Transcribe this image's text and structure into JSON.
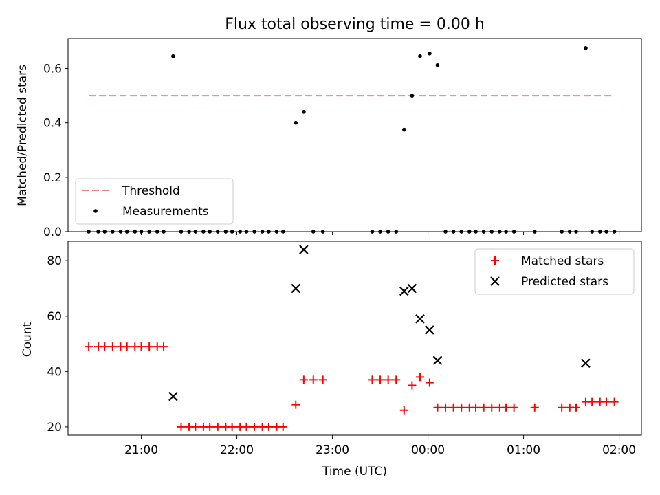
{
  "chart_data": [
    {
      "type": "scatter",
      "title": "Flux total observing time = 0.00 h",
      "ylabel": "Matched/Predicted stars",
      "xlabel": "",
      "xlim": [
        "20:14",
        "02:14"
      ],
      "ylim": [
        0,
        0.71
      ],
      "yticks": [
        "0.0",
        "0.2",
        "0.4",
        "0.6"
      ],
      "legend": {
        "placement": "lower-left",
        "entries": [
          "Threshold",
          "Measurements"
        ]
      },
      "threshold": {
        "name": "Threshold",
        "value": 0.5,
        "x_start": "20:27",
        "x_end": "01:57",
        "color": "#f08080",
        "style": "dashed"
      },
      "series": [
        {
          "name": "Measurements",
          "marker": "dot",
          "color": "#000000",
          "points": [
            [
              "20:27",
              0
            ],
            [
              "20:33",
              0
            ],
            [
              "20:37",
              0
            ],
            [
              "20:42",
              0
            ],
            [
              "20:47",
              0
            ],
            [
              "20:51",
              0
            ],
            [
              "20:56",
              0
            ],
            [
              "21:00",
              0
            ],
            [
              "21:05",
              0
            ],
            [
              "21:10",
              0
            ],
            [
              "21:14",
              0
            ],
            [
              "21:20",
              0.645
            ],
            [
              "21:25",
              0
            ],
            [
              "21:30",
              0
            ],
            [
              "21:34",
              0
            ],
            [
              "21:39",
              0
            ],
            [
              "21:43",
              0
            ],
            [
              "21:48",
              0
            ],
            [
              "21:53",
              0
            ],
            [
              "21:57",
              0
            ],
            [
              "22:02",
              0
            ],
            [
              "22:06",
              0
            ],
            [
              "22:11",
              0
            ],
            [
              "22:16",
              0
            ],
            [
              "22:20",
              0
            ],
            [
              "22:25",
              0
            ],
            [
              "22:29",
              0
            ],
            [
              "22:37",
              0.4
            ],
            [
              "22:42",
              0.44
            ],
            [
              "22:48",
              0
            ],
            [
              "22:54",
              0
            ],
            [
              "23:25",
              0
            ],
            [
              "23:30",
              0
            ],
            [
              "23:35",
              0
            ],
            [
              "23:40",
              0
            ],
            [
              "23:45",
              0.375
            ],
            [
              "23:50",
              0.5
            ],
            [
              "23:55",
              0.645
            ],
            [
              "00:01",
              0.655
            ],
            [
              "00:06",
              0.612
            ],
            [
              "00:11",
              0
            ],
            [
              "00:16",
              0
            ],
            [
              "00:21",
              0
            ],
            [
              "00:26",
              0
            ],
            [
              "00:30",
              0
            ],
            [
              "00:35",
              0
            ],
            [
              "00:40",
              0
            ],
            [
              "00:45",
              0
            ],
            [
              "00:49",
              0
            ],
            [
              "00:54",
              0
            ],
            [
              "01:07",
              0
            ],
            [
              "01:24",
              0
            ],
            [
              "01:29",
              0
            ],
            [
              "01:33",
              0
            ],
            [
              "01:39",
              0.675
            ],
            [
              "01:43",
              0
            ],
            [
              "01:48",
              0
            ],
            [
              "01:52",
              0
            ],
            [
              "01:57",
              0
            ]
          ]
        }
      ]
    },
    {
      "type": "scatter",
      "title": "",
      "ylabel": "Count",
      "xlabel": "Time (UTC)",
      "xlim": [
        "20:14",
        "02:14"
      ],
      "ylim": [
        17,
        87
      ],
      "yticks": [
        "20",
        "40",
        "60",
        "80"
      ],
      "xticks": [
        "21:00",
        "22:00",
        "23:00",
        "00:00",
        "01:00",
        "02:00"
      ],
      "legend": {
        "placement": "upper-right",
        "entries": [
          "Matched stars",
          "Predicted stars"
        ]
      },
      "series": [
        {
          "name": "Matched stars",
          "marker": "plus",
          "color": "#ff0000",
          "points": [
            [
              "20:27",
              49
            ],
            [
              "20:33",
              49
            ],
            [
              "20:37",
              49
            ],
            [
              "20:42",
              49
            ],
            [
              "20:47",
              49
            ],
            [
              "20:51",
              49
            ],
            [
              "20:56",
              49
            ],
            [
              "21:00",
              49
            ],
            [
              "21:05",
              49
            ],
            [
              "21:10",
              49
            ],
            [
              "21:14",
              49
            ],
            [
              "21:25",
              20
            ],
            [
              "21:30",
              20
            ],
            [
              "21:34",
              20
            ],
            [
              "21:39",
              20
            ],
            [
              "21:43",
              20
            ],
            [
              "21:48",
              20
            ],
            [
              "21:53",
              20
            ],
            [
              "21:57",
              20
            ],
            [
              "22:02",
              20
            ],
            [
              "22:06",
              20
            ],
            [
              "22:11",
              20
            ],
            [
              "22:16",
              20
            ],
            [
              "22:20",
              20
            ],
            [
              "22:25",
              20
            ],
            [
              "22:29",
              20
            ],
            [
              "22:37",
              28
            ],
            [
              "22:42",
              37
            ],
            [
              "22:48",
              37
            ],
            [
              "22:54",
              37
            ],
            [
              "23:25",
              37
            ],
            [
              "23:30",
              37
            ],
            [
              "23:35",
              37
            ],
            [
              "23:40",
              37
            ],
            [
              "23:45",
              26
            ],
            [
              "23:50",
              35
            ],
            [
              "23:55",
              38
            ],
            [
              "00:01",
              36
            ],
            [
              "00:06",
              27
            ],
            [
              "00:11",
              27
            ],
            [
              "00:16",
              27
            ],
            [
              "00:21",
              27
            ],
            [
              "00:26",
              27
            ],
            [
              "00:30",
              27
            ],
            [
              "00:35",
              27
            ],
            [
              "00:40",
              27
            ],
            [
              "00:45",
              27
            ],
            [
              "00:49",
              27
            ],
            [
              "00:54",
              27
            ],
            [
              "01:07",
              27
            ],
            [
              "01:24",
              27
            ],
            [
              "01:29",
              27
            ],
            [
              "01:33",
              27
            ],
            [
              "01:39",
              29
            ],
            [
              "01:43",
              29
            ],
            [
              "01:48",
              29
            ],
            [
              "01:52",
              29
            ],
            [
              "01:57",
              29
            ]
          ]
        },
        {
          "name": "Predicted stars",
          "marker": "x",
          "color": "#000000",
          "points": [
            [
              "21:20",
              31
            ],
            [
              "22:37",
              70
            ],
            [
              "22:42",
              84
            ],
            [
              "23:45",
              69
            ],
            [
              "23:50",
              70
            ],
            [
              "23:55",
              59
            ],
            [
              "00:01",
              55
            ],
            [
              "00:06",
              44
            ],
            [
              "01:39",
              43
            ]
          ]
        }
      ]
    }
  ]
}
